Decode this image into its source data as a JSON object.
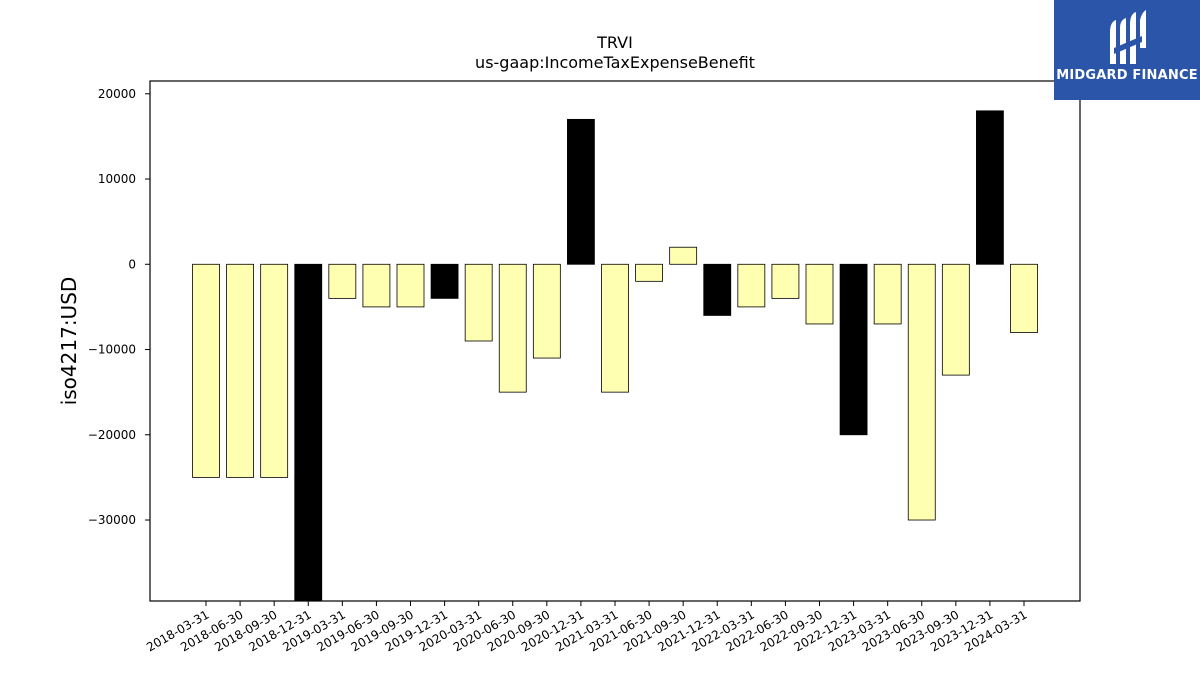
{
  "chart_data": {
    "type": "bar",
    "title": "TRVI",
    "subtitle": "us-gaap:IncomeTaxExpenseBenefit",
    "xlabel": "",
    "ylabel": "iso4217:USD",
    "ylim": [
      -39500,
      21500
    ],
    "yticks": [
      20000,
      10000,
      0,
      -10000,
      -20000,
      -30000
    ],
    "ytick_labels": [
      "20000",
      "10000",
      "0",
      "−10000",
      "−20000",
      "−30000"
    ],
    "categories": [
      "2018-03-31",
      "2018-06-30",
      "2018-09-30",
      "2018-12-31",
      "2019-03-31",
      "2019-06-30",
      "2019-09-30",
      "2019-12-31",
      "2020-03-31",
      "2020-06-30",
      "2020-09-30",
      "2020-12-31",
      "2021-03-31",
      "2021-06-30",
      "2021-09-30",
      "2021-12-31",
      "2022-03-31",
      "2022-06-30",
      "2022-09-30",
      "2022-12-31",
      "2023-03-31",
      "2023-06-30",
      "2023-09-30",
      "2023-12-31",
      "2024-03-31"
    ],
    "values": [
      -25000,
      -25000,
      -25000,
      -39500,
      -4000,
      -5000,
      -5000,
      -4000,
      -9000,
      -15000,
      -11000,
      17000,
      -15000,
      -2000,
      2000,
      -6000,
      -5000,
      -4000,
      -7000,
      -20000,
      -7000,
      -30000,
      -13000,
      18000,
      -8000
    ],
    "bar_colors": [
      "#ffffb2",
      "#ffffb2",
      "#ffffb2",
      "#000000",
      "#ffffb2",
      "#ffffb2",
      "#ffffb2",
      "#000000",
      "#ffffb2",
      "#ffffb2",
      "#ffffb2",
      "#000000",
      "#ffffb2",
      "#ffffb2",
      "#ffffb2",
      "#000000",
      "#ffffb2",
      "#ffffb2",
      "#ffffb2",
      "#000000",
      "#ffffb2",
      "#ffffb2",
      "#ffffb2",
      "#000000",
      "#ffffb2"
    ],
    "grid": false,
    "legend": "none"
  },
  "logo": {
    "text": "MIDGARD FINANCE",
    "background": "#2a55a8"
  }
}
